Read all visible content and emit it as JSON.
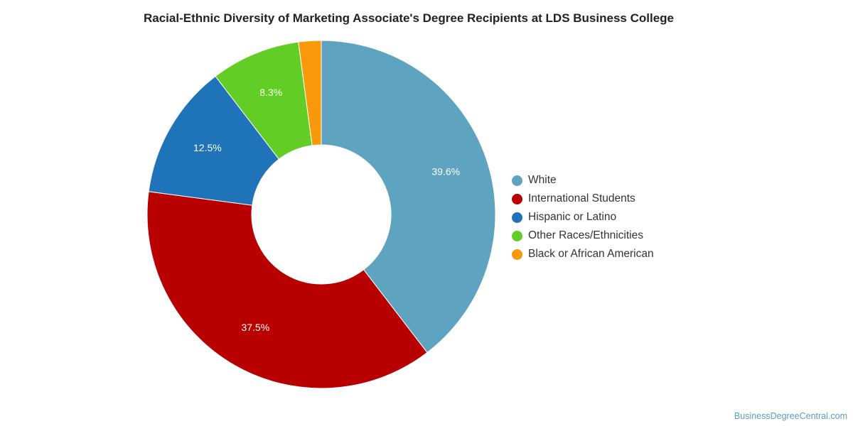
{
  "chart_data": {
    "type": "pie",
    "title": "Racial-Ethnic Diversity of Marketing Associate's Degree Recipients at LDS Business College",
    "donut": true,
    "legend_position": "right",
    "series": [
      {
        "name": "White",
        "value": 39.6,
        "label": "39.6%",
        "color": "#5ea3c0"
      },
      {
        "name": "International Students",
        "value": 37.5,
        "label": "37.5%",
        "color": "#b90000"
      },
      {
        "name": "Hispanic or Latino",
        "value": 12.5,
        "label": "12.5%",
        "color": "#1f73b8"
      },
      {
        "name": "Other Races/Ethnicities",
        "value": 8.3,
        "label": "8.3%",
        "color": "#62cd24"
      },
      {
        "name": "Black or African American",
        "value": 2.1,
        "label": "",
        "color": "#f7990b"
      }
    ]
  },
  "watermark": "BusinessDegreeCentral.com"
}
